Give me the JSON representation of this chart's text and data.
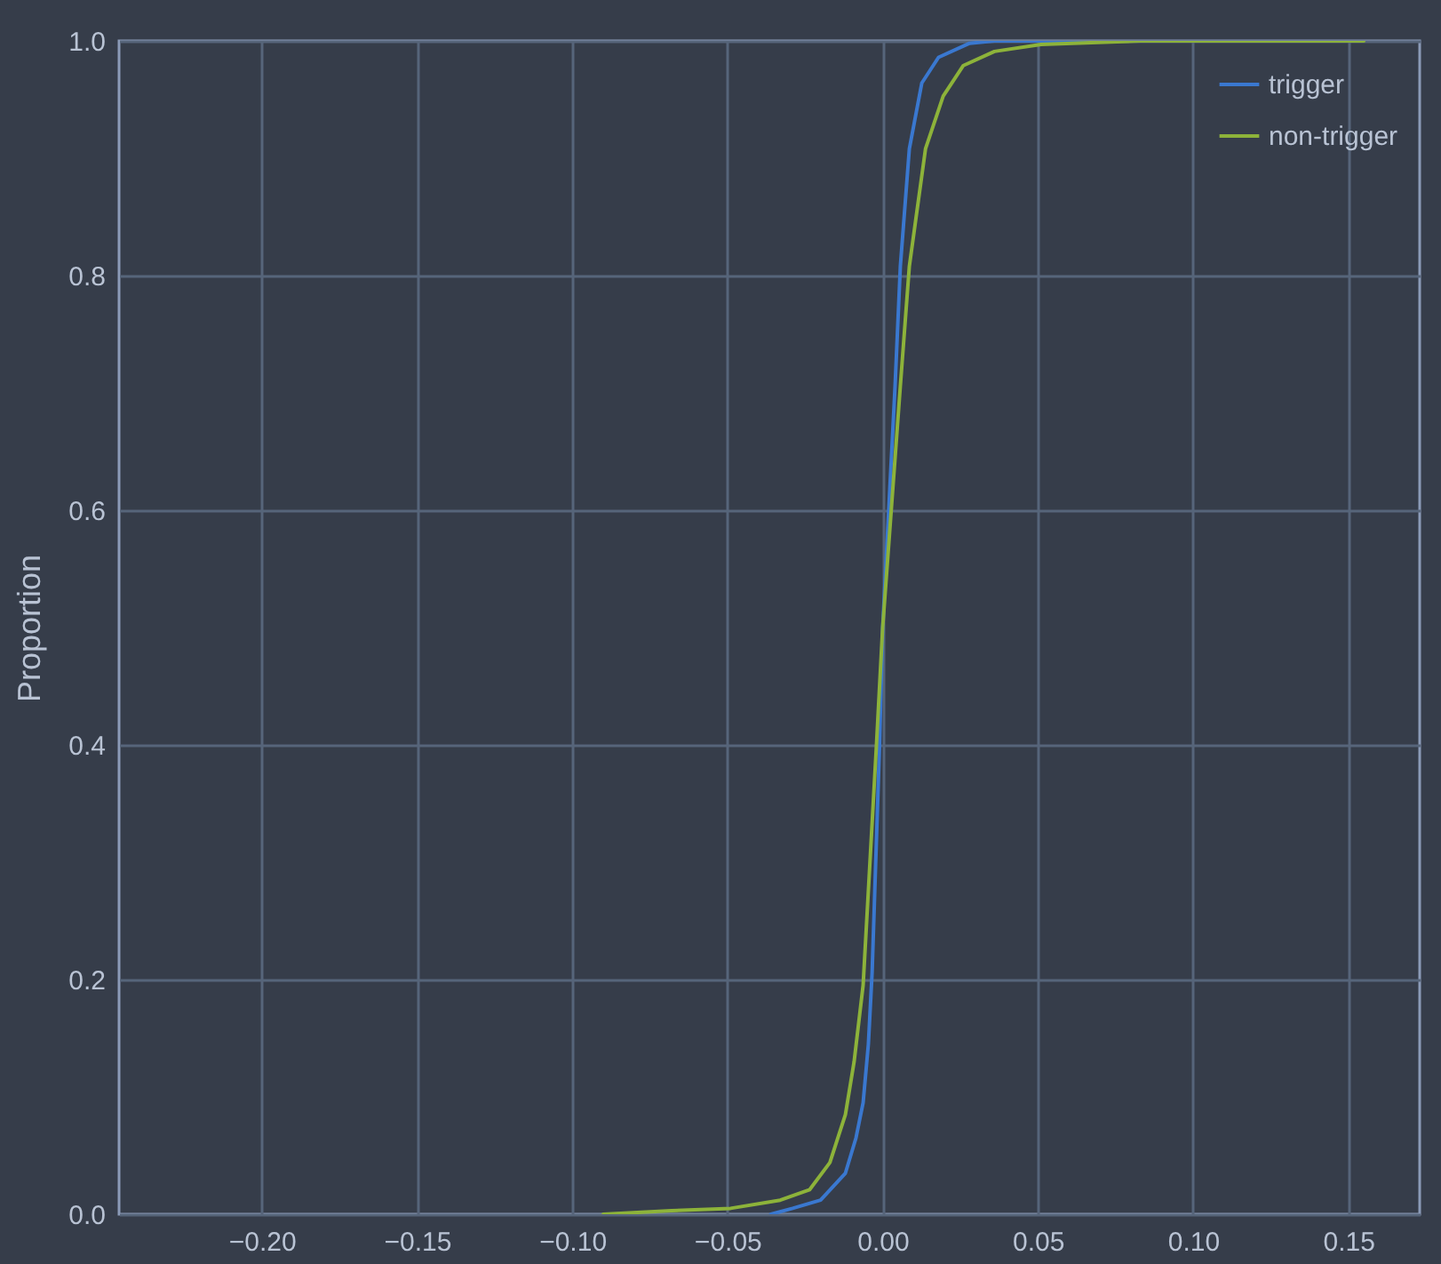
{
  "chart_data": {
    "type": "line",
    "ylabel": "Proportion",
    "xlim": [
      -0.246,
      0.173
    ],
    "ylim": [
      0,
      1
    ],
    "xticks": [
      {
        "value": -0.2,
        "label": "−0.20"
      },
      {
        "value": -0.15,
        "label": "−0.15"
      },
      {
        "value": -0.1,
        "label": "−0.10"
      },
      {
        "value": -0.05,
        "label": "−0.05"
      },
      {
        "value": 0,
        "label": "0.00"
      },
      {
        "value": 0.05,
        "label": "0.05"
      },
      {
        "value": 0.1,
        "label": "0.10"
      },
      {
        "value": 0.15,
        "label": "0.15"
      }
    ],
    "yticks": [
      {
        "value": 0,
        "label": "0.0"
      },
      {
        "value": 0.2,
        "label": "0.2"
      },
      {
        "value": 0.4,
        "label": "0.4"
      },
      {
        "value": 0.6,
        "label": "0.6"
      },
      {
        "value": 0.8,
        "label": "0.8"
      },
      {
        "value": 1,
        "label": "1.0"
      }
    ],
    "grid": true,
    "legend": "top right",
    "series": [
      {
        "name": "trigger",
        "color": "#3a78d0",
        "x": [
          -0.036,
          -0.029,
          -0.02,
          -0.012,
          -0.0086,
          -0.0063,
          -0.0046,
          -0.0034,
          -0.001,
          0.0,
          0.004,
          0.0057,
          0.0086,
          0.0126,
          0.018,
          0.028,
          0.036,
          0.08
        ],
        "values": [
          0,
          0.005,
          0.012,
          0.035,
          0.065,
          0.095,
          0.145,
          0.206,
          0.4,
          0.5,
          0.706,
          0.808,
          0.908,
          0.964,
          0.986,
          0.998,
          1,
          1
        ]
      },
      {
        "name": "non-trigger",
        "color": "#8db33a",
        "x": [
          -0.09,
          -0.068,
          -0.049,
          -0.033,
          -0.0235,
          -0.017,
          -0.012,
          -0.0092,
          -0.0063,
          -0.002,
          0.0,
          0.0057,
          0.0086,
          0.0138,
          0.0195,
          0.026,
          0.036,
          0.051,
          0.083,
          0.155
        ],
        "values": [
          0,
          0.003,
          0.005,
          0.012,
          0.021,
          0.044,
          0.085,
          0.13,
          0.195,
          0.4,
          0.5,
          0.706,
          0.808,
          0.908,
          0.953,
          0.979,
          0.991,
          0.997,
          1,
          1
        ]
      }
    ]
  }
}
